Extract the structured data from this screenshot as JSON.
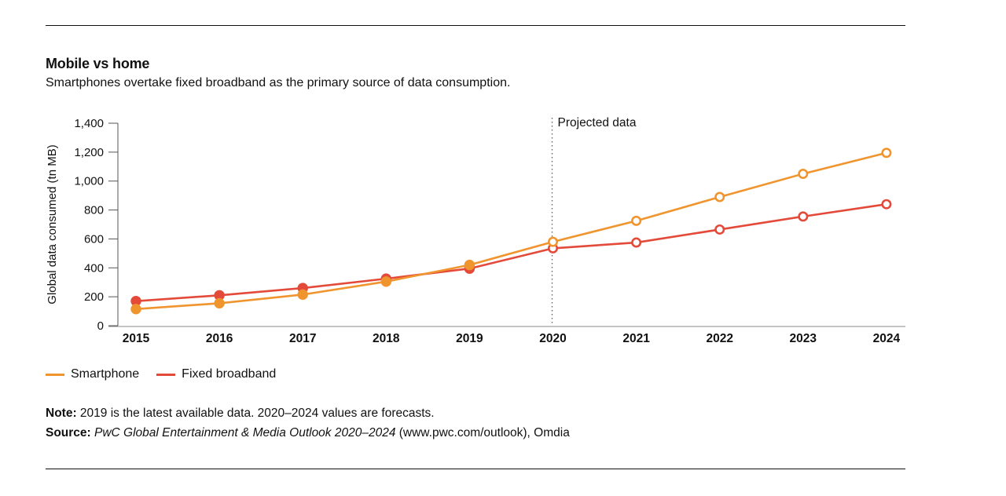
{
  "header": {
    "title": "Mobile vs home",
    "subtitle": "Smartphones overtake fixed broadband as the primary source of data consumption."
  },
  "legend": {
    "items": [
      {
        "label": "Smartphone",
        "color": "#f0952e"
      },
      {
        "label": "Fixed broadband",
        "color": "#e44a3a"
      }
    ]
  },
  "footer": {
    "note_label": "Note:",
    "note_text": " 2019 is the latest available data. 2020–2024 values are forecasts.",
    "source_label": "Source:",
    "source_italic": " PwC Global Entertainment & Media Outlook 2020–2024",
    "source_rest": " (www.pwc.com/outlook), Omdia"
  },
  "chart_data": {
    "type": "line",
    "title": "Mobile vs home",
    "xlabel": "",
    "ylabel": "Global data consumed (tn MB)",
    "ylim": [
      0,
      1400
    ],
    "yticks": [
      0,
      200,
      400,
      600,
      800,
      1000,
      1200,
      1400
    ],
    "ytick_labels": [
      "0",
      "200",
      "400",
      "600",
      "800",
      "1,000",
      "1,200",
      "1,400"
    ],
    "categories": [
      "2015",
      "2016",
      "2017",
      "2018",
      "2019",
      "2020",
      "2021",
      "2022",
      "2023",
      "2024"
    ],
    "annotation": {
      "label": "Projected data",
      "at": "2020"
    },
    "actual_through": "2019",
    "series": [
      {
        "name": "Smartphone",
        "color": "#f0952e",
        "values": [
          115,
          155,
          215,
          305,
          420,
          580,
          725,
          890,
          1050,
          1195
        ]
      },
      {
        "name": "Fixed broadband",
        "color": "#e44a3a",
        "values": [
          170,
          210,
          260,
          325,
          395,
          535,
          575,
          665,
          755,
          840
        ]
      }
    ]
  }
}
